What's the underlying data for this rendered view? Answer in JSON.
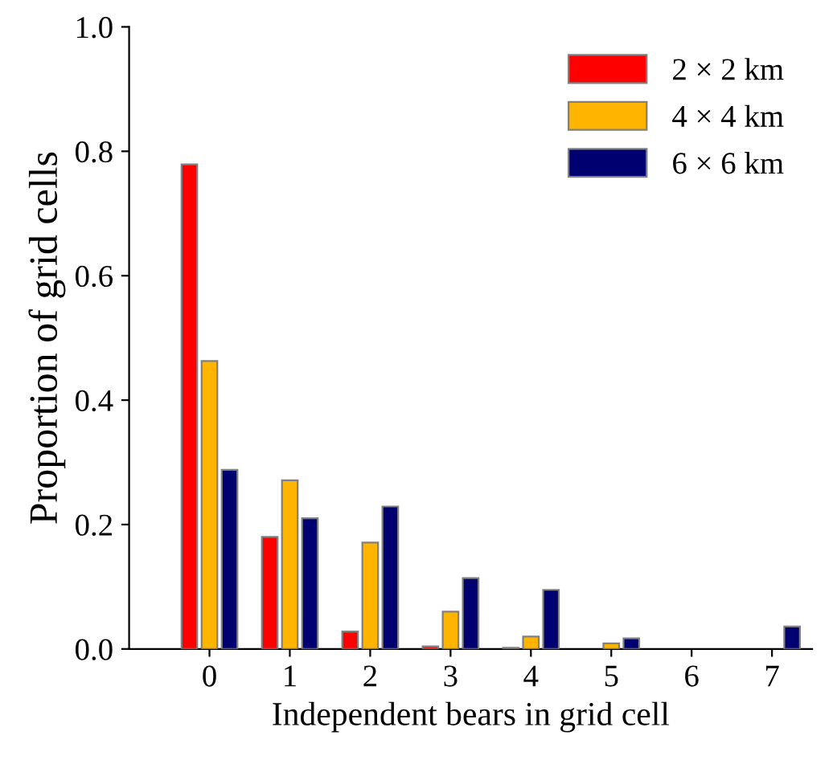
{
  "chart_data": {
    "type": "bar",
    "xlabel": "Independent bears in grid cell",
    "ylabel": "Proportion of grid cells",
    "categories": [
      "0",
      "1",
      "2",
      "3",
      "4",
      "5",
      "6",
      "7"
    ],
    "series": [
      {
        "name": "2 × 2 km",
        "color": "#ff0000",
        "values": [
          0.779,
          0.18,
          0.028,
          0.004,
          0.002,
          null,
          null,
          null
        ]
      },
      {
        "name": "4 × 4 km",
        "color": "#ffb400",
        "values": [
          0.463,
          0.271,
          0.171,
          0.06,
          0.02,
          0.009,
          null,
          null
        ]
      },
      {
        "name": "6 × 6 km",
        "color": "#000070",
        "values": [
          0.288,
          0.21,
          0.229,
          0.114,
          0.095,
          0.017,
          null,
          0.036
        ]
      }
    ],
    "ylim": [
      0,
      1.0
    ],
    "yticks": [
      {
        "value": 0,
        "label": "0.0"
      },
      {
        "value": 0.2,
        "label": "0.2"
      },
      {
        "value": 0.4,
        "label": "0.4"
      },
      {
        "value": 0.6,
        "label": "0.6"
      },
      {
        "value": 0.8,
        "label": "0.8"
      },
      {
        "value": 1.0,
        "label": "1.0"
      }
    ],
    "grid": false,
    "legend": "top right"
  }
}
